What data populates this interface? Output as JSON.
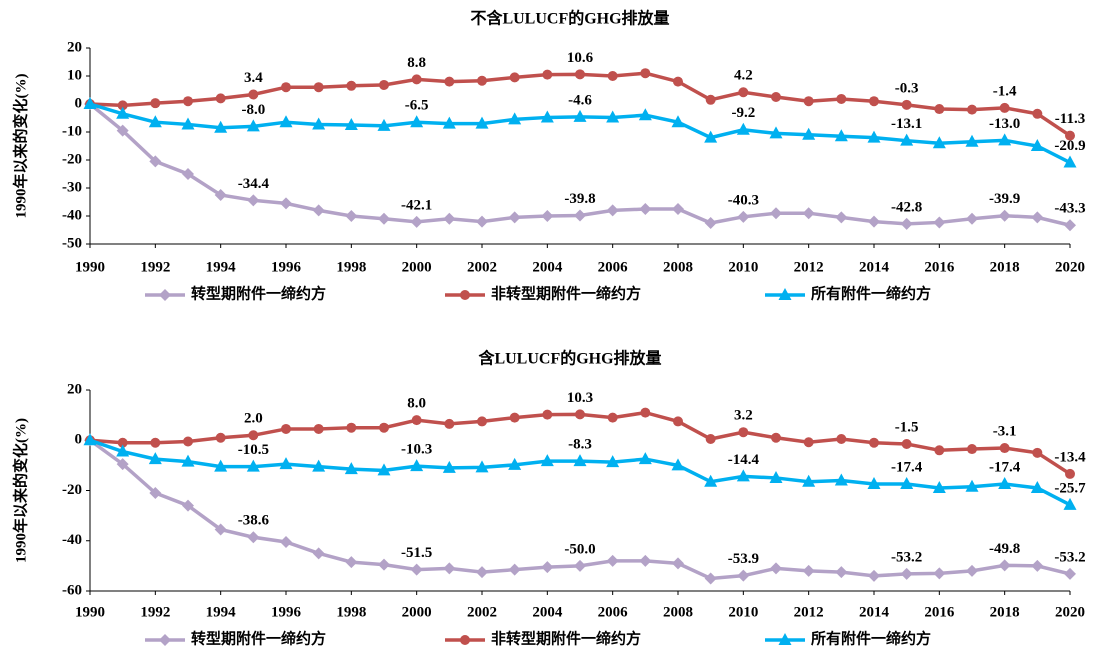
{
  "chart_data": [
    {
      "type": "line",
      "title": "不含LULUCF的GHG排放量",
      "y_label": "1990年以来的变化(%)",
      "x": [
        1990,
        1991,
        1992,
        1993,
        1994,
        1995,
        1996,
        1997,
        1998,
        1999,
        2000,
        2001,
        2002,
        2003,
        2004,
        2005,
        2006,
        2007,
        2008,
        2009,
        2010,
        2011,
        2012,
        2013,
        2014,
        2015,
        2016,
        2017,
        2018,
        2019,
        2020
      ],
      "xlim": [
        1990,
        2020
      ],
      "xticks": [
        1990,
        1992,
        1994,
        1996,
        1998,
        2000,
        2002,
        2004,
        2006,
        2008,
        2010,
        2012,
        2014,
        2016,
        2018,
        2020
      ],
      "ylim": [
        -50,
        20
      ],
      "yticks": [
        -50,
        -40,
        -30,
        -20,
        -10,
        0,
        10,
        20
      ],
      "legend": "bottom",
      "series": [
        {
          "name": "转型期附件一缔约方",
          "color": "#b3a2c7",
          "marker": "diamond",
          "values": [
            0,
            -9.5,
            -20.5,
            -25,
            -32.5,
            -34.4,
            -35.5,
            -38,
            -40,
            -41,
            -42.1,
            -41,
            -42,
            -40.5,
            -40,
            -39.8,
            -38,
            -37.5,
            -37.5,
            -42.5,
            -40.3,
            -39,
            -39,
            -40.5,
            -42,
            -42.8,
            -42.3,
            -41,
            -39.9,
            -40.5,
            -43.3
          ],
          "value_labels": [
            null,
            null,
            null,
            null,
            null,
            "-34.4",
            null,
            null,
            null,
            null,
            "-42.1",
            null,
            null,
            null,
            null,
            "-39.8",
            null,
            null,
            null,
            null,
            "-40.3",
            null,
            null,
            null,
            null,
            "-42.8",
            null,
            null,
            "-39.9",
            null,
            "-43.3"
          ]
        },
        {
          "name": "非转型期附件一缔约方",
          "color": "#c0504d",
          "marker": "circle",
          "values": [
            0,
            -0.5,
            0.3,
            1,
            2,
            3.4,
            6,
            6,
            6.5,
            6.8,
            8.8,
            8,
            8.3,
            9.5,
            10.5,
            10.6,
            10,
            11,
            8,
            1.5,
            4.2,
            2.5,
            1,
            1.8,
            1,
            -0.3,
            -1.8,
            -2,
            -1.4,
            -3.5,
            -11.3
          ],
          "value_labels": [
            null,
            null,
            null,
            null,
            null,
            "3.4",
            null,
            null,
            null,
            null,
            "8.8",
            null,
            null,
            null,
            null,
            "10.6",
            null,
            null,
            null,
            null,
            "4.2",
            null,
            null,
            null,
            null,
            "-0.3",
            null,
            null,
            "-1.4",
            null,
            "-11.3"
          ]
        },
        {
          "name": "所有附件一缔约方",
          "color": "#00b0f0",
          "marker": "triangle",
          "values": [
            0,
            -3.5,
            -6.5,
            -7.3,
            -8.5,
            -8,
            -6.5,
            -7.3,
            -7.5,
            -7.8,
            -6.5,
            -7,
            -7,
            -5.5,
            -4.8,
            -4.6,
            -4.8,
            -4,
            -6.5,
            -12,
            -9.2,
            -10.5,
            -11,
            -11.5,
            -12,
            -13.1,
            -14,
            -13.5,
            -13,
            -15,
            -20.9
          ],
          "value_labels": [
            null,
            null,
            null,
            null,
            null,
            "-8.0",
            null,
            null,
            null,
            null,
            "-6.5",
            null,
            null,
            null,
            null,
            "-4.6",
            null,
            null,
            null,
            null,
            "-9.2",
            null,
            null,
            null,
            null,
            "-13.1",
            null,
            null,
            "-13.0",
            null,
            "-20.9"
          ]
        }
      ]
    },
    {
      "type": "line",
      "title": "含LULUCF的GHG排放量",
      "y_label": "1990年以来的变化(%)",
      "x": [
        1990,
        1991,
        1992,
        1993,
        1994,
        1995,
        1996,
        1997,
        1998,
        1999,
        2000,
        2001,
        2002,
        2003,
        2004,
        2005,
        2006,
        2007,
        2008,
        2009,
        2010,
        2011,
        2012,
        2013,
        2014,
        2015,
        2016,
        2017,
        2018,
        2019,
        2020
      ],
      "xlim": [
        1990,
        2020
      ],
      "xticks": [
        1990,
        1992,
        1994,
        1996,
        1998,
        2000,
        2002,
        2004,
        2006,
        2008,
        2010,
        2012,
        2014,
        2016,
        2018,
        2020
      ],
      "ylim": [
        -60,
        20
      ],
      "yticks": [
        -60,
        -40,
        -20,
        0,
        20
      ],
      "legend": "bottom",
      "series": [
        {
          "name": "转型期附件一缔约方",
          "color": "#b3a2c7",
          "marker": "diamond",
          "values": [
            0,
            -9.5,
            -21,
            -26,
            -35.5,
            -38.6,
            -40.5,
            -45,
            -48.5,
            -49.5,
            -51.5,
            -51,
            -52.5,
            -51.5,
            -50.5,
            -50,
            -48,
            -48,
            -49,
            -55,
            -53.9,
            -51,
            -52,
            -52.5,
            -54,
            -53.2,
            -53,
            -52,
            -49.8,
            -50,
            -53.2
          ],
          "value_labels": [
            null,
            null,
            null,
            null,
            null,
            "-38.6",
            null,
            null,
            null,
            null,
            "-51.5",
            null,
            null,
            null,
            null,
            "-50.0",
            null,
            null,
            null,
            null,
            "-53.9",
            null,
            null,
            null,
            null,
            "-53.2",
            null,
            null,
            "-49.8",
            null,
            "-53.2"
          ]
        },
        {
          "name": "非转型期附件一缔约方",
          "color": "#c0504d",
          "marker": "circle",
          "values": [
            0,
            -1,
            -1,
            -0.5,
            1,
            2,
            4.5,
            4.5,
            5,
            5,
            8,
            6.5,
            7.5,
            9,
            10.2,
            10.3,
            9,
            11,
            7.5,
            0.5,
            3.2,
            1,
            -0.8,
            0.5,
            -1,
            -1.5,
            -4,
            -3.5,
            -3.1,
            -5,
            -13.4
          ],
          "value_labels": [
            null,
            null,
            null,
            null,
            null,
            "2.0",
            null,
            null,
            null,
            null,
            "8.0",
            null,
            null,
            null,
            null,
            "10.3",
            null,
            null,
            null,
            null,
            "3.2",
            null,
            null,
            null,
            null,
            "-1.5",
            null,
            null,
            "-3.1",
            null,
            "-13.4"
          ]
        },
        {
          "name": "所有附件一缔约方",
          "color": "#00b0f0",
          "marker": "triangle",
          "values": [
            0,
            -4.5,
            -7.5,
            -8.5,
            -10.5,
            -10.5,
            -9.5,
            -10.5,
            -11.5,
            -12,
            -10.3,
            -11,
            -10.8,
            -9.8,
            -8.3,
            -8.3,
            -8.7,
            -7.5,
            -10,
            -16.5,
            -14.4,
            -15,
            -16.5,
            -16,
            -17.4,
            -17.4,
            -19,
            -18.5,
            -17.4,
            -19,
            -25.7
          ],
          "value_labels": [
            null,
            null,
            null,
            null,
            null,
            "-10.5",
            null,
            null,
            null,
            null,
            "-10.3",
            null,
            null,
            null,
            null,
            "-8.3",
            null,
            null,
            null,
            null,
            "-14.4",
            null,
            null,
            null,
            null,
            "-17.4",
            null,
            null,
            "-17.4",
            null,
            "-25.7"
          ]
        }
      ]
    }
  ]
}
